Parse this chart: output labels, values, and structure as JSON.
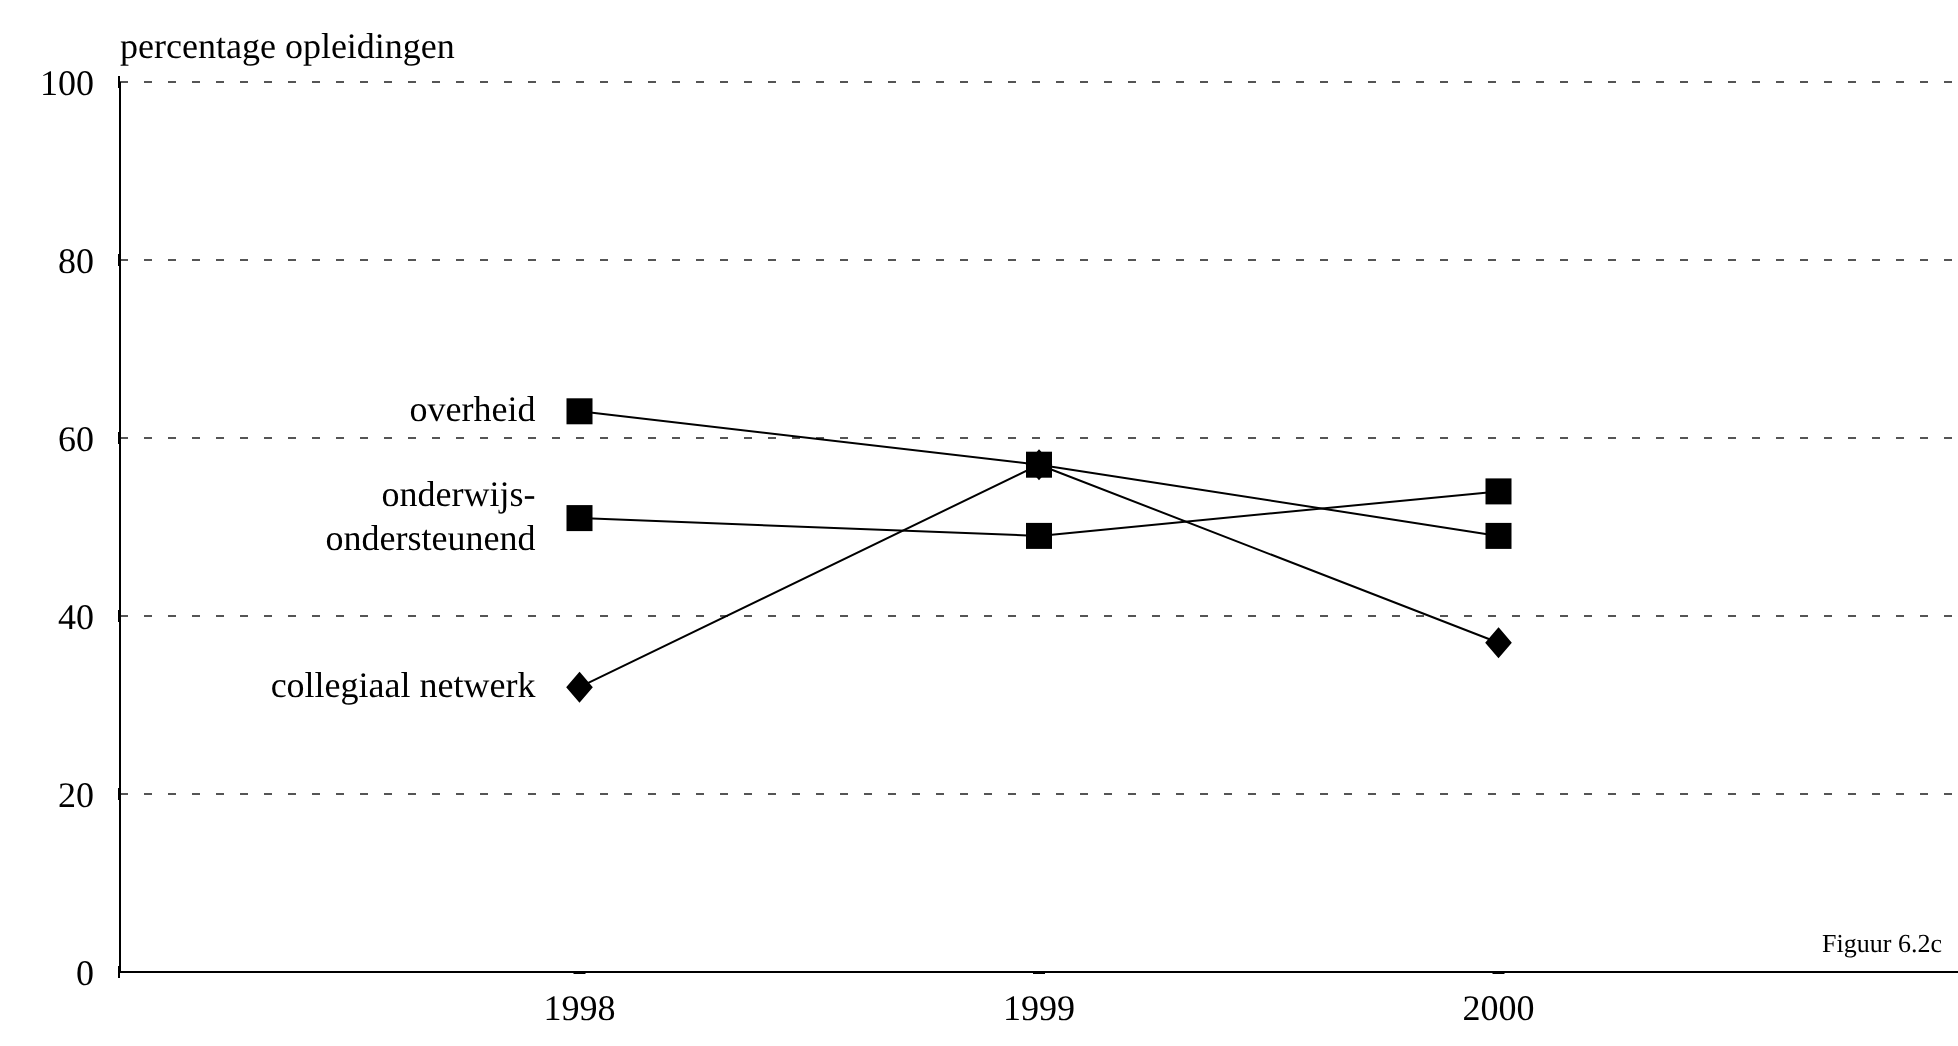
{
  "chart_data": {
    "type": "line",
    "ylabel": "percentage opleidingen",
    "x": [
      1998,
      1999,
      2000
    ],
    "xlim": [
      1997,
      2001
    ],
    "xticks": [
      1998,
      1999,
      2000
    ],
    "ylim": [
      0,
      100
    ],
    "yticks": [
      0,
      20,
      40,
      60,
      80,
      100
    ],
    "grid": "y",
    "legend": false,
    "line_style": "solid",
    "annotations": [
      "Figuur 6.2c"
    ],
    "series": [
      {
        "name": "overheid",
        "color": "#000000",
        "marker": "square",
        "values": [
          63,
          57,
          49
        ]
      },
      {
        "name": "onderwijs-ondersteunend",
        "color": "#000000",
        "marker": "square",
        "values": [
          51,
          49,
          54
        ]
      },
      {
        "name": "collegiaal netwerk",
        "color": "#000000",
        "marker": "diamond",
        "values": [
          32,
          57,
          37
        ]
      }
    ]
  }
}
